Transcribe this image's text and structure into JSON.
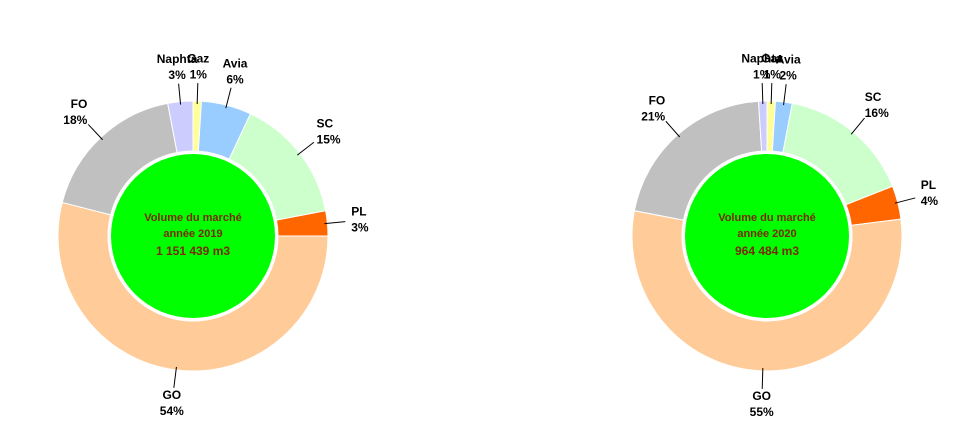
{
  "chart_data": [
    {
      "type": "donut",
      "categories": [
        "Gaz",
        "Avia",
        "SC",
        "PL",
        "GO",
        "FO",
        "Naphta"
      ],
      "values": [
        1,
        6,
        15,
        3,
        54,
        18,
        3
      ],
      "value_labels": [
        "1%",
        "6%",
        "15%",
        "3%",
        "54%",
        "18%",
        "3%"
      ],
      "colors": [
        "#ffff99",
        "#99ccff",
        "#ccffcc",
        "#ff6600",
        "#ffcc99",
        "#c0c0c0",
        "#ccccff"
      ],
      "center_text": [
        "Volume du marché",
        "année 2019",
        "1 151 439 m3"
      ],
      "center_color": "#00ff00"
    },
    {
      "type": "donut",
      "categories": [
        "Gaz",
        "Avia",
        "SC",
        "PL",
        "GO",
        "FO",
        "Naphta"
      ],
      "values": [
        1,
        2,
        16,
        4,
        55,
        21,
        1
      ],
      "value_labels": [
        "1%",
        "2%",
        "16%",
        "4%",
        "55%",
        "21%",
        "1%"
      ],
      "colors": [
        "#ffff99",
        "#99ccff",
        "#ccffcc",
        "#ff6600",
        "#ffcc99",
        "#c0c0c0",
        "#ccccff"
      ],
      "center_text": [
        "Volume du marché",
        "année 2020",
        "964 484 m3"
      ],
      "center_color": "#00ff00"
    }
  ]
}
